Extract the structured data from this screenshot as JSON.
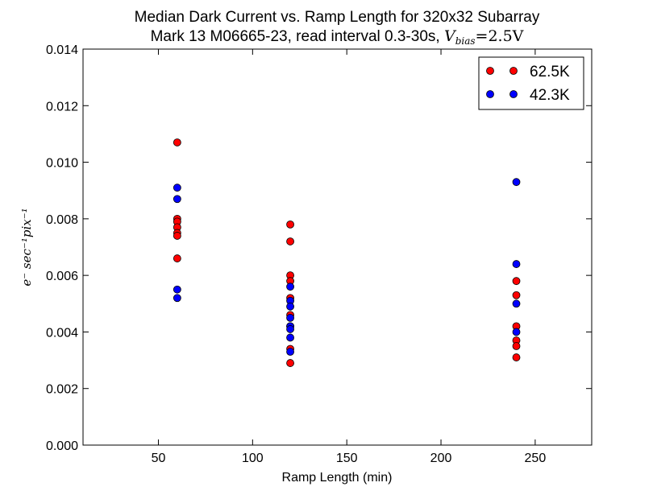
{
  "chart_data": {
    "type": "scatter",
    "title": "Median Dark Current vs. Ramp Length for 320x32 Subarray",
    "subtitle": "Mark 13 M06665-23, read interval 0.3-30s, ",
    "subtitle_math": "V",
    "subtitle_math_sub": "bias",
    "subtitle_math_rest": "=2.5V",
    "xlabel": "Ramp Length (min)",
    "ylabel": "e⁻ sec⁻¹pix⁻¹",
    "xlim": [
      10,
      280
    ],
    "ylim": [
      0.0,
      0.014
    ],
    "xticks": [
      50,
      100,
      150,
      200,
      250
    ],
    "xtick_labels": [
      "50",
      "100",
      "150",
      "200",
      "250"
    ],
    "yticks": [
      0.0,
      0.002,
      0.004,
      0.006,
      0.008,
      0.01,
      0.012,
      0.014
    ],
    "ytick_labels": [
      "0.000",
      "0.002",
      "0.004",
      "0.006",
      "0.008",
      "0.010",
      "0.012",
      "0.014"
    ],
    "grid": false,
    "legend_position": "top-right",
    "series": [
      {
        "name": "62.5K",
        "color": "#ff0000",
        "points": [
          [
            60,
            0.0107
          ],
          [
            60,
            0.008
          ],
          [
            60,
            0.0079
          ],
          [
            60,
            0.0077
          ],
          [
            60,
            0.0075
          ],
          [
            60,
            0.0074
          ],
          [
            60,
            0.0066
          ],
          [
            120,
            0.0078
          ],
          [
            120,
            0.0072
          ],
          [
            120,
            0.006
          ],
          [
            120,
            0.0058
          ],
          [
            120,
            0.0052
          ],
          [
            120,
            0.0046
          ],
          [
            120,
            0.0042
          ],
          [
            120,
            0.0034
          ],
          [
            120,
            0.0029
          ],
          [
            240,
            0.0058
          ],
          [
            240,
            0.0053
          ],
          [
            240,
            0.0042
          ],
          [
            240,
            0.0037
          ],
          [
            240,
            0.0035
          ],
          [
            240,
            0.0031
          ]
        ]
      },
      {
        "name": "42.3K",
        "color": "#0000ff",
        "points": [
          [
            60,
            0.0091
          ],
          [
            60,
            0.0087
          ],
          [
            60,
            0.0055
          ],
          [
            60,
            0.0052
          ],
          [
            120,
            0.0056
          ],
          [
            120,
            0.0051
          ],
          [
            120,
            0.0049
          ],
          [
            120,
            0.0045
          ],
          [
            120,
            0.0042
          ],
          [
            120,
            0.0041
          ],
          [
            120,
            0.0038
          ],
          [
            120,
            0.0033
          ],
          [
            240,
            0.0093
          ],
          [
            240,
            0.0064
          ],
          [
            240,
            0.005
          ],
          [
            240,
            0.004
          ]
        ]
      }
    ]
  }
}
